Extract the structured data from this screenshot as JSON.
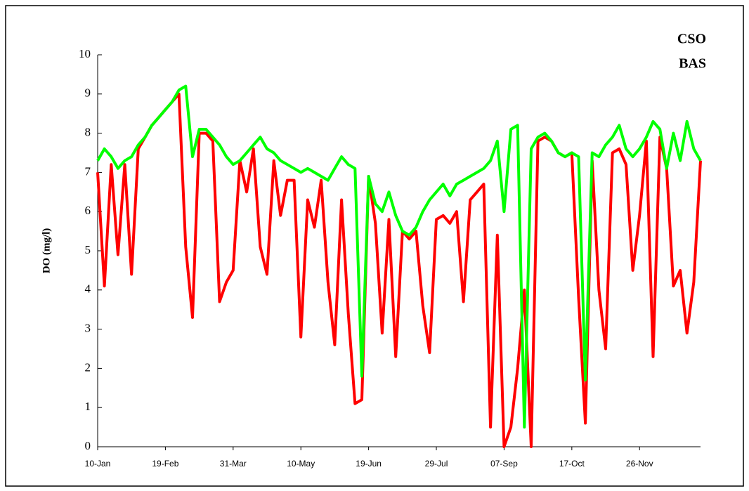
{
  "chart_data": {
    "type": "line",
    "y_label": "DO (mg/l)",
    "x": [
      10,
      14,
      18,
      22,
      26,
      30,
      34,
      38,
      42,
      46,
      50,
      54,
      58,
      62,
      66,
      70,
      74,
      78,
      82,
      86,
      90,
      94,
      98,
      102,
      106,
      110,
      114,
      118,
      122,
      126,
      130,
      134,
      138,
      142,
      146,
      150,
      154,
      158,
      162,
      166,
      170,
      174,
      178,
      182,
      186,
      190,
      194,
      198,
      202,
      206,
      210,
      214,
      218,
      222,
      226,
      230,
      234,
      238,
      242,
      246,
      250,
      254,
      258,
      262,
      266,
      270,
      274,
      278,
      282,
      286,
      290,
      294,
      298,
      302,
      306,
      310,
      314,
      318,
      322,
      326,
      330,
      334,
      338,
      342,
      346,
      350,
      354,
      358,
      362,
      366
    ],
    "series": [
      {
        "name": "CSO",
        "color": "#ff0000",
        "values": [
          7.0,
          4.1,
          7.2,
          4.9,
          7.2,
          4.4,
          7.6,
          7.9,
          8.2,
          8.4,
          8.6,
          8.8,
          9.0,
          5.1,
          3.3,
          8.0,
          8.0,
          7.8,
          3.7,
          4.2,
          4.5,
          7.3,
          6.5,
          7.6,
          5.1,
          4.4,
          7.3,
          5.9,
          6.8,
          6.8,
          2.8,
          6.3,
          5.6,
          6.8,
          4.2,
          2.6,
          6.3,
          3.4,
          1.1,
          1.2,
          6.9,
          5.7,
          2.9,
          5.8,
          2.3,
          5.5,
          5.3,
          5.5,
          3.6,
          2.4,
          5.8,
          5.9,
          5.7,
          6.0,
          3.7,
          6.3,
          6.5,
          6.7,
          0.5,
          5.4,
          0.0,
          0.5,
          2.0,
          4.0,
          0.0,
          7.8,
          7.9,
          7.8,
          7.5,
          7.4,
          7.5,
          3.8,
          0.6,
          7.3,
          4.0,
          2.5,
          7.5,
          7.6,
          7.2,
          4.5,
          5.9,
          7.8,
          2.3,
          7.9,
          7.1,
          4.1,
          4.5,
          2.9,
          4.2,
          7.3
        ]
      },
      {
        "name": "BAS",
        "color": "#00ff00",
        "values": [
          7.3,
          7.6,
          7.4,
          7.1,
          7.3,
          7.4,
          7.7,
          7.9,
          8.2,
          8.4,
          8.6,
          8.8,
          9.1,
          9.2,
          7.4,
          8.1,
          8.1,
          7.9,
          7.7,
          7.4,
          7.2,
          7.3,
          7.5,
          7.7,
          7.9,
          7.6,
          7.5,
          7.3,
          7.2,
          7.1,
          7.0,
          7.1,
          7.0,
          6.9,
          6.8,
          7.1,
          7.4,
          7.2,
          7.1,
          1.8,
          6.9,
          6.2,
          6.0,
          6.5,
          5.9,
          5.5,
          5.4,
          5.6,
          6.0,
          6.3,
          6.5,
          6.7,
          6.4,
          6.7,
          6.8,
          6.9,
          7.0,
          7.1,
          7.3,
          7.8,
          6.0,
          8.1,
          8.2,
          0.5,
          7.6,
          7.9,
          8.0,
          7.8,
          7.5,
          7.4,
          7.5,
          7.4,
          1.7,
          7.5,
          7.4,
          7.7,
          7.9,
          8.2,
          7.6,
          7.4,
          7.6,
          7.9,
          8.3,
          8.1,
          7.1,
          8.0,
          7.3,
          8.3,
          7.6,
          7.3
        ]
      }
    ],
    "xlim": [
      10,
      366
    ],
    "xticks": [
      {
        "value": 10,
        "label": "10-Jan"
      },
      {
        "value": 50,
        "label": "19-Feb"
      },
      {
        "value": 90,
        "label": "31-Mar"
      },
      {
        "value": 130,
        "label": "10-May"
      },
      {
        "value": 170,
        "label": "19-Jun"
      },
      {
        "value": 210,
        "label": "29-Jul"
      },
      {
        "value": 250,
        "label": "07-Sep"
      },
      {
        "value": 290,
        "label": "17-Oct"
      },
      {
        "value": 330,
        "label": "26-Nov"
      }
    ],
    "ylim": [
      0,
      10
    ],
    "yticks": [
      0,
      1,
      2,
      3,
      4,
      5,
      6,
      7,
      8,
      9,
      10
    ],
    "grid": false,
    "legend": "top-right"
  }
}
